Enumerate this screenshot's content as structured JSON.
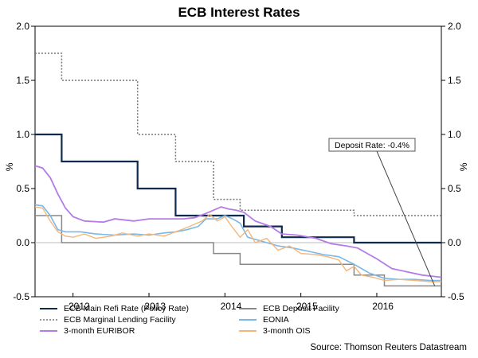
{
  "chart_data": {
    "type": "line",
    "title": "ECB Interest Rates",
    "ylabel_left": "%",
    "ylabel_right": "%",
    "ylim": [
      -0.5,
      2.0
    ],
    "yticks": [
      "-0.5",
      "0.0",
      "0.5",
      "1.0",
      "1.5",
      "2.0"
    ],
    "xlim": [
      2011.5,
      2016.85
    ],
    "xticks": [
      "2012",
      "2013",
      "2014",
      "2015",
      "2016"
    ],
    "annotation": {
      "text": "Deposit Rate: -0.4%",
      "x": 2016.7,
      "y": -0.4
    },
    "source": "Source: Thomson Reuters Datastream",
    "series": [
      {
        "name": "ECB Main Refi Rate (Policy Rate)",
        "color": "#0f2a4a",
        "style": "solid",
        "width": 2.2,
        "points": [
          [
            2011.5,
            1.0
          ],
          [
            2011.85,
            1.0
          ],
          [
            2011.85,
            0.75
          ],
          [
            2012.85,
            0.75
          ],
          [
            2012.85,
            0.5
          ],
          [
            2013.35,
            0.5
          ],
          [
            2013.35,
            0.25
          ],
          [
            2014.25,
            0.25
          ],
          [
            2014.25,
            0.15
          ],
          [
            2014.75,
            0.15
          ],
          [
            2014.75,
            0.05
          ],
          [
            2015.7,
            0.05
          ],
          [
            2015.7,
            0.0
          ],
          [
            2016.85,
            0.0
          ]
        ]
      },
      {
        "name": "ECB Marginal Lending Facility",
        "color": "#777777",
        "style": "dotted",
        "width": 1.5,
        "points": [
          [
            2011.5,
            1.75
          ],
          [
            2011.85,
            1.75
          ],
          [
            2011.85,
            1.5
          ],
          [
            2012.85,
            1.5
          ],
          [
            2012.85,
            1.0
          ],
          [
            2013.35,
            1.0
          ],
          [
            2013.35,
            0.75
          ],
          [
            2013.85,
            0.75
          ],
          [
            2013.85,
            0.4
          ],
          [
            2014.2,
            0.4
          ],
          [
            2014.2,
            0.3
          ],
          [
            2015.7,
            0.3
          ],
          [
            2015.7,
            0.25
          ],
          [
            2016.85,
            0.25
          ]
        ]
      },
      {
        "name": "3-month EURIBOR",
        "color": "#b57be6",
        "style": "solid",
        "width": 1.8,
        "points": [
          [
            2011.5,
            0.71
          ],
          [
            2011.6,
            0.69
          ],
          [
            2011.7,
            0.6
          ],
          [
            2011.8,
            0.45
          ],
          [
            2011.9,
            0.32
          ],
          [
            2012.0,
            0.24
          ],
          [
            2012.15,
            0.2
          ],
          [
            2012.4,
            0.19
          ],
          [
            2012.55,
            0.22
          ],
          [
            2012.8,
            0.2
          ],
          [
            2013.0,
            0.22
          ],
          [
            2013.3,
            0.22
          ],
          [
            2013.45,
            0.22
          ],
          [
            2013.6,
            0.23
          ],
          [
            2013.75,
            0.27
          ],
          [
            2013.85,
            0.3
          ],
          [
            2013.95,
            0.33
          ],
          [
            2014.05,
            0.31
          ],
          [
            2014.15,
            0.3
          ],
          [
            2014.25,
            0.28
          ],
          [
            2014.4,
            0.2
          ],
          [
            2014.6,
            0.15
          ],
          [
            2014.75,
            0.08
          ],
          [
            2014.95,
            0.07
          ],
          [
            2015.2,
            0.04
          ],
          [
            2015.4,
            -0.01
          ],
          [
            2015.6,
            -0.03
          ],
          [
            2015.75,
            -0.05
          ],
          [
            2015.9,
            -0.11
          ],
          [
            2016.0,
            -0.15
          ],
          [
            2016.2,
            -0.24
          ],
          [
            2016.4,
            -0.27
          ],
          [
            2016.6,
            -0.3
          ],
          [
            2016.85,
            -0.32
          ]
        ]
      },
      {
        "name": "ECB Deposit Facility",
        "color": "#888888",
        "style": "solid",
        "width": 1.5,
        "points": [
          [
            2011.5,
            0.25
          ],
          [
            2011.85,
            0.25
          ],
          [
            2011.85,
            0.0
          ],
          [
            2013.85,
            0.0
          ],
          [
            2013.85,
            -0.1
          ],
          [
            2014.2,
            -0.1
          ],
          [
            2014.2,
            -0.2
          ],
          [
            2015.7,
            -0.2
          ],
          [
            2015.7,
            -0.3
          ],
          [
            2016.1,
            -0.3
          ],
          [
            2016.1,
            -0.4
          ],
          [
            2016.85,
            -0.4
          ]
        ]
      },
      {
        "name": "EONIA",
        "color": "#7ab8e8",
        "style": "solid",
        "width": 1.6,
        "points": [
          [
            2011.5,
            0.35
          ],
          [
            2011.6,
            0.34
          ],
          [
            2011.7,
            0.25
          ],
          [
            2011.8,
            0.12
          ],
          [
            2011.9,
            0.1
          ],
          [
            2012.1,
            0.1
          ],
          [
            2012.3,
            0.08
          ],
          [
            2012.55,
            0.07
          ],
          [
            2012.8,
            0.08
          ],
          [
            2013.0,
            0.07
          ],
          [
            2013.2,
            0.09
          ],
          [
            2013.35,
            0.1
          ],
          [
            2013.5,
            0.12
          ],
          [
            2013.65,
            0.15
          ],
          [
            2013.75,
            0.22
          ],
          [
            2013.9,
            0.22
          ],
          [
            2014.0,
            0.25
          ],
          [
            2014.1,
            0.22
          ],
          [
            2014.2,
            0.18
          ],
          [
            2014.3,
            0.05
          ],
          [
            2014.5,
            0.01
          ],
          [
            2014.7,
            -0.03
          ],
          [
            2014.9,
            -0.05
          ],
          [
            2015.1,
            -0.08
          ],
          [
            2015.3,
            -0.11
          ],
          [
            2015.5,
            -0.13
          ],
          [
            2015.7,
            -0.2
          ],
          [
            2015.9,
            -0.28
          ],
          [
            2016.1,
            -0.33
          ],
          [
            2016.3,
            -0.34
          ],
          [
            2016.5,
            -0.34
          ],
          [
            2016.7,
            -0.35
          ],
          [
            2016.85,
            -0.35
          ]
        ]
      },
      {
        "name": "3-month OIS",
        "color": "#f5b67a",
        "style": "solid",
        "width": 1.4,
        "points": [
          [
            2011.5,
            0.33
          ],
          [
            2011.6,
            0.32
          ],
          [
            2011.7,
            0.2
          ],
          [
            2011.8,
            0.1
          ],
          [
            2011.9,
            0.06
          ],
          [
            2012.0,
            0.05
          ],
          [
            2012.15,
            0.08
          ],
          [
            2012.3,
            0.04
          ],
          [
            2012.5,
            0.06
          ],
          [
            2012.65,
            0.09
          ],
          [
            2012.85,
            0.06
          ],
          [
            2013.0,
            0.08
          ],
          [
            2013.2,
            0.06
          ],
          [
            2013.35,
            0.1
          ],
          [
            2013.5,
            0.14
          ],
          [
            2013.6,
            0.17
          ],
          [
            2013.7,
            0.2
          ],
          [
            2013.8,
            0.26
          ],
          [
            2013.9,
            0.2
          ],
          [
            2014.0,
            0.24
          ],
          [
            2014.1,
            0.14
          ],
          [
            2014.2,
            0.05
          ],
          [
            2014.3,
            0.12
          ],
          [
            2014.4,
            0.0
          ],
          [
            2014.55,
            0.04
          ],
          [
            2014.7,
            -0.07
          ],
          [
            2014.85,
            -0.03
          ],
          [
            2015.0,
            -0.1
          ],
          [
            2015.2,
            -0.11
          ],
          [
            2015.35,
            -0.13
          ],
          [
            2015.5,
            -0.16
          ],
          [
            2015.6,
            -0.26
          ],
          [
            2015.7,
            -0.22
          ],
          [
            2015.8,
            -0.3
          ],
          [
            2015.95,
            -0.32
          ],
          [
            2016.1,
            -0.35
          ],
          [
            2016.3,
            -0.34
          ],
          [
            2016.5,
            -0.35
          ],
          [
            2016.7,
            -0.36
          ],
          [
            2016.85,
            -0.36
          ]
        ]
      }
    ]
  },
  "legend": [
    {
      "label": "ECB Main Refi Rate (Policy Rate)",
      "color": "#0f2a4a",
      "style": "solid"
    },
    {
      "label": "ECB Deposit Facility",
      "color": "#888888",
      "style": "solid"
    },
    {
      "label": "ECB Marginal Lending Facility",
      "color": "#777777",
      "style": "dotted"
    },
    {
      "label": "EONIA",
      "color": "#7ab8e8",
      "style": "solid"
    },
    {
      "label": "3-month EURIBOR",
      "color": "#b57be6",
      "style": "solid"
    },
    {
      "label": "3-month OIS",
      "color": "#f5b67a",
      "style": "solid"
    }
  ]
}
